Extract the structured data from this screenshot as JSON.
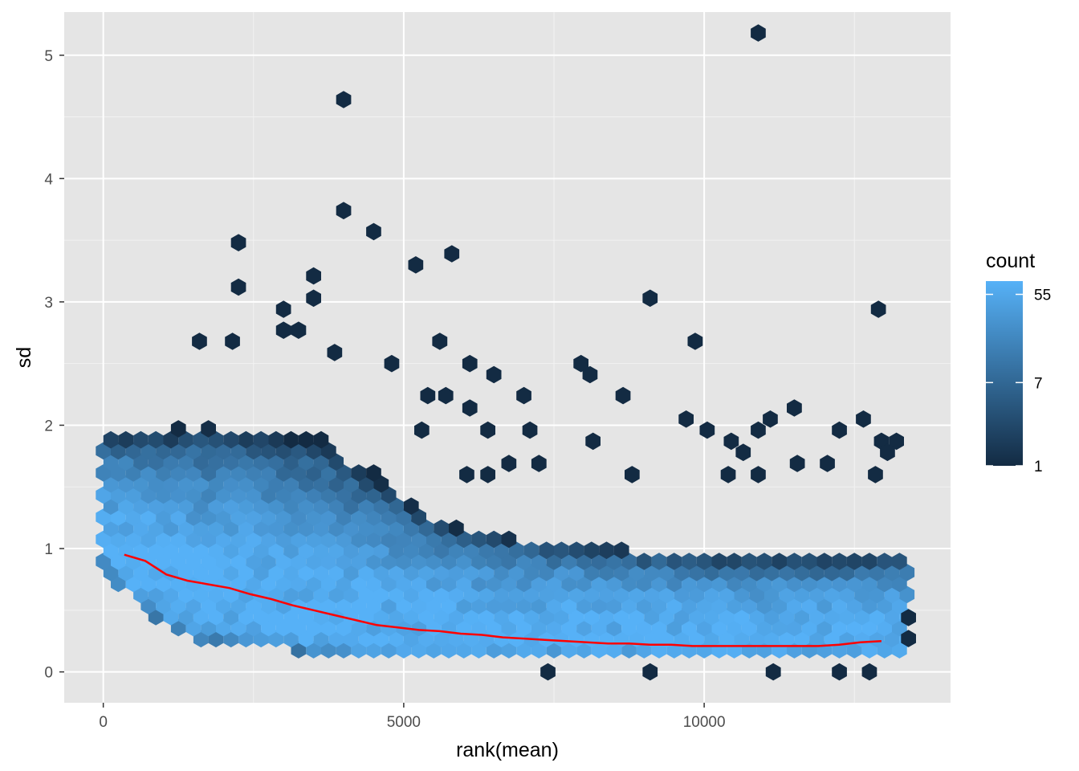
{
  "chart_data": {
    "type": "hexbin",
    "xlabel": "rank(mean)",
    "ylabel": "sd",
    "xlim": [
      -650,
      14100
    ],
    "ylim": [
      -0.25,
      5.35
    ],
    "x_ticks": [
      0,
      5000,
      10000
    ],
    "x_tick_labels": [
      "0",
      "5000",
      "10000"
    ],
    "y_ticks": [
      0,
      1,
      2,
      3,
      4,
      5
    ],
    "y_tick_labels": [
      "0",
      "1",
      "2",
      "3",
      "4",
      "5"
    ],
    "grid": true,
    "background": "#e5e5e5",
    "legend": {
      "title": "count",
      "position": "right",
      "scale": "log",
      "breaks": [
        1,
        7,
        55
      ],
      "labels": [
        "1",
        "7",
        "55"
      ],
      "limits": [
        1,
        75
      ],
      "low_color": "#132b43",
      "high_color": "#56b1f7"
    },
    "bin_width": 250,
    "dense_band": {
      "x_range": [
        0,
        13400
      ],
      "lower_sd": [
        [
          0,
          0.9
        ],
        [
          500,
          0.55
        ],
        [
          1500,
          0.28
        ],
        [
          3000,
          0.2
        ],
        [
          4500,
          0.12
        ],
        [
          13400,
          0.12
        ]
      ],
      "upper_sd": [
        [
          0,
          1.9
        ],
        [
          2000,
          2.0
        ],
        [
          3500,
          1.9
        ],
        [
          4500,
          1.6
        ],
        [
          5500,
          1.2
        ],
        [
          7000,
          1.05
        ],
        [
          9000,
          0.95
        ],
        [
          11000,
          0.9
        ],
        [
          13400,
          0.9
        ]
      ]
    },
    "outliers": [
      {
        "x": 10900,
        "y": 5.18
      },
      {
        "x": 4000,
        "y": 4.64
      },
      {
        "x": 4000,
        "y": 3.74
      },
      {
        "x": 4500,
        "y": 3.57
      },
      {
        "x": 2250,
        "y": 3.48
      },
      {
        "x": 5800,
        "y": 3.39
      },
      {
        "x": 5200,
        "y": 3.3
      },
      {
        "x": 3500,
        "y": 3.21
      },
      {
        "x": 2250,
        "y": 3.12
      },
      {
        "x": 3500,
        "y": 3.03
      },
      {
        "x": 9100,
        "y": 3.03
      },
      {
        "x": 3000,
        "y": 2.94
      },
      {
        "x": 12900,
        "y": 2.94
      },
      {
        "x": 3000,
        "y": 2.77
      },
      {
        "x": 3250,
        "y": 2.77
      },
      {
        "x": 1600,
        "y": 2.68
      },
      {
        "x": 2150,
        "y": 2.68
      },
      {
        "x": 5600,
        "y": 2.68
      },
      {
        "x": 9850,
        "y": 2.68
      },
      {
        "x": 3850,
        "y": 2.59
      },
      {
        "x": 6100,
        "y": 2.5
      },
      {
        "x": 7950,
        "y": 2.5
      },
      {
        "x": 4800,
        "y": 2.5
      },
      {
        "x": 6500,
        "y": 2.41
      },
      {
        "x": 8100,
        "y": 2.41
      },
      {
        "x": 5400,
        "y": 2.24
      },
      {
        "x": 5700,
        "y": 2.24
      },
      {
        "x": 7000,
        "y": 2.24
      },
      {
        "x": 8650,
        "y": 2.24
      },
      {
        "x": 6100,
        "y": 2.14
      },
      {
        "x": 11500,
        "y": 2.14
      },
      {
        "x": 9700,
        "y": 2.05
      },
      {
        "x": 11100,
        "y": 2.05
      },
      {
        "x": 12650,
        "y": 2.05
      },
      {
        "x": 5300,
        "y": 1.96
      },
      {
        "x": 6400,
        "y": 1.96
      },
      {
        "x": 7100,
        "y": 1.96
      },
      {
        "x": 10050,
        "y": 1.96
      },
      {
        "x": 10900,
        "y": 1.96
      },
      {
        "x": 12250,
        "y": 1.96
      },
      {
        "x": 8150,
        "y": 1.87
      },
      {
        "x": 10450,
        "y": 1.87
      },
      {
        "x": 12950,
        "y": 1.87
      },
      {
        "x": 13200,
        "y": 1.87
      },
      {
        "x": 10650,
        "y": 1.78
      },
      {
        "x": 13050,
        "y": 1.78
      },
      {
        "x": 6750,
        "y": 1.69
      },
      {
        "x": 7250,
        "y": 1.69
      },
      {
        "x": 11550,
        "y": 1.69
      },
      {
        "x": 12050,
        "y": 1.69
      },
      {
        "x": 6050,
        "y": 1.6
      },
      {
        "x": 6400,
        "y": 1.6
      },
      {
        "x": 8800,
        "y": 1.6
      },
      {
        "x": 10400,
        "y": 1.6
      },
      {
        "x": 10900,
        "y": 1.6
      },
      {
        "x": 12850,
        "y": 1.6
      },
      {
        "x": 9100,
        "y": 0.0
      },
      {
        "x": 7400,
        "y": 0.0
      },
      {
        "x": 11150,
        "y": 0.0
      },
      {
        "x": 12250,
        "y": 0.0
      },
      {
        "x": 12750,
        "y": 0.0
      },
      {
        "x": 13400,
        "y": 0.44
      },
      {
        "x": 13400,
        "y": 0.27
      }
    ],
    "trend_line": {
      "color": "#ff0000",
      "x": [
        350,
        700,
        1050,
        1400,
        1750,
        2100,
        2450,
        2800,
        3150,
        3500,
        3850,
        4200,
        4550,
        4900,
        5250,
        5600,
        5950,
        6300,
        6650,
        7000,
        7350,
        7700,
        8050,
        8400,
        8750,
        9100,
        9450,
        9800,
        10150,
        10500,
        10850,
        11200,
        11550,
        11900,
        12250,
        12600,
        12950
      ],
      "y": [
        0.95,
        0.9,
        0.79,
        0.74,
        0.71,
        0.68,
        0.63,
        0.59,
        0.54,
        0.5,
        0.46,
        0.42,
        0.38,
        0.36,
        0.34,
        0.33,
        0.31,
        0.3,
        0.28,
        0.27,
        0.26,
        0.25,
        0.24,
        0.23,
        0.23,
        0.22,
        0.22,
        0.21,
        0.21,
        0.21,
        0.21,
        0.21,
        0.21,
        0.21,
        0.22,
        0.24,
        0.25
      ]
    }
  }
}
